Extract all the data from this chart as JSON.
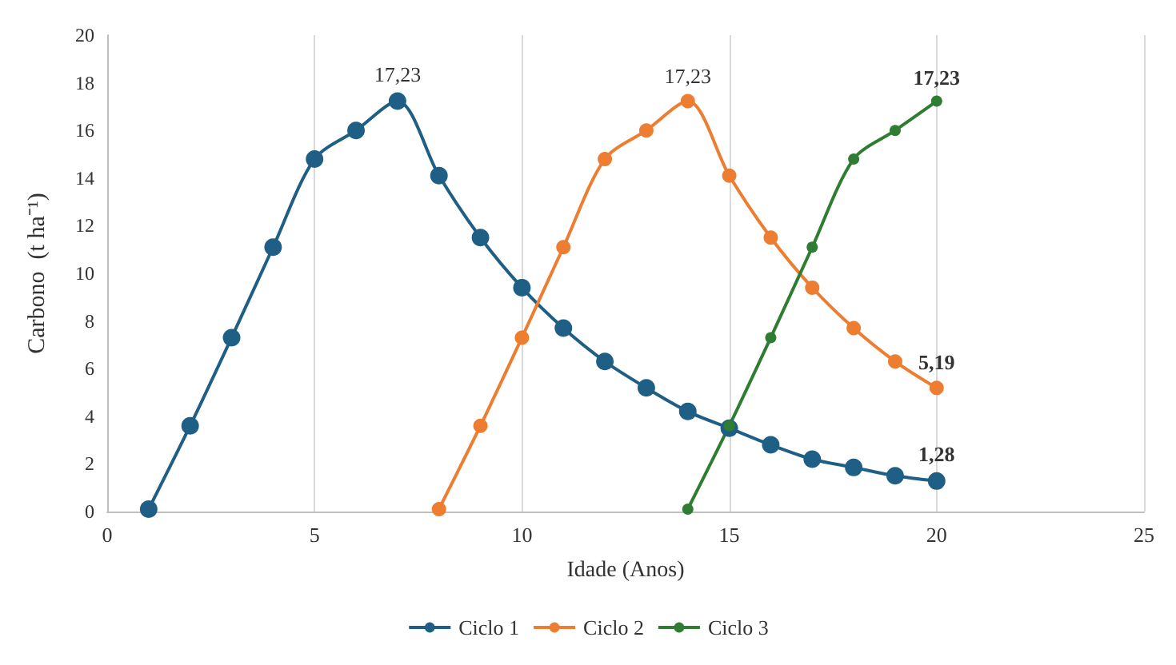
{
  "chart_data": {
    "type": "line",
    "xlabel": "Idade (Anos)",
    "ylabel": "Carbono  (t ha⁻¹)",
    "xlim": [
      0,
      25
    ],
    "xticks": [
      0,
      5,
      10,
      15,
      20,
      25
    ],
    "ylim": [
      0,
      20
    ],
    "yticks": [
      0,
      2,
      4,
      6,
      8,
      10,
      12,
      14,
      16,
      18,
      20
    ],
    "grid": "x",
    "legend": "bottom",
    "marker": "circle",
    "line_style": "solid",
    "series": [
      {
        "name": "Ciclo 1",
        "color": "#1f5f85",
        "x": [
          1,
          2,
          3,
          4,
          5,
          6,
          7,
          8,
          9,
          10,
          11,
          12,
          13,
          14,
          15,
          16,
          17,
          18,
          19,
          20
        ],
        "values": [
          0.1,
          3.6,
          7.3,
          11.1,
          14.8,
          16.0,
          17.23,
          14.1,
          11.5,
          9.4,
          7.7,
          6.3,
          5.19,
          4.2,
          3.5,
          2.8,
          2.2,
          1.85,
          1.5,
          1.28
        ],
        "value_labels": [
          null,
          null,
          null,
          null,
          null,
          null,
          "17,23",
          null,
          null,
          null,
          null,
          null,
          null,
          null,
          null,
          null,
          null,
          null,
          null,
          "1,28"
        ]
      },
      {
        "name": "Ciclo 2",
        "color": "#ed7d31",
        "x": [
          8,
          9,
          10,
          11,
          12,
          13,
          14,
          15,
          16,
          17,
          18,
          19,
          20
        ],
        "values": [
          0.1,
          3.6,
          7.3,
          11.1,
          14.8,
          16.0,
          17.23,
          14.1,
          11.5,
          9.4,
          7.7,
          6.3,
          5.19
        ],
        "value_labels": [
          null,
          null,
          null,
          null,
          null,
          null,
          "17,23",
          null,
          null,
          null,
          null,
          null,
          "5,19"
        ]
      },
      {
        "name": "Ciclo 3",
        "color": "#2e7d32",
        "x": [
          14,
          15,
          16,
          17,
          18,
          19,
          20
        ],
        "values": [
          0.1,
          3.6,
          7.3,
          11.1,
          14.8,
          16.0,
          17.23
        ],
        "value_labels": [
          null,
          null,
          null,
          null,
          null,
          null,
          "17,23"
        ]
      }
    ]
  }
}
